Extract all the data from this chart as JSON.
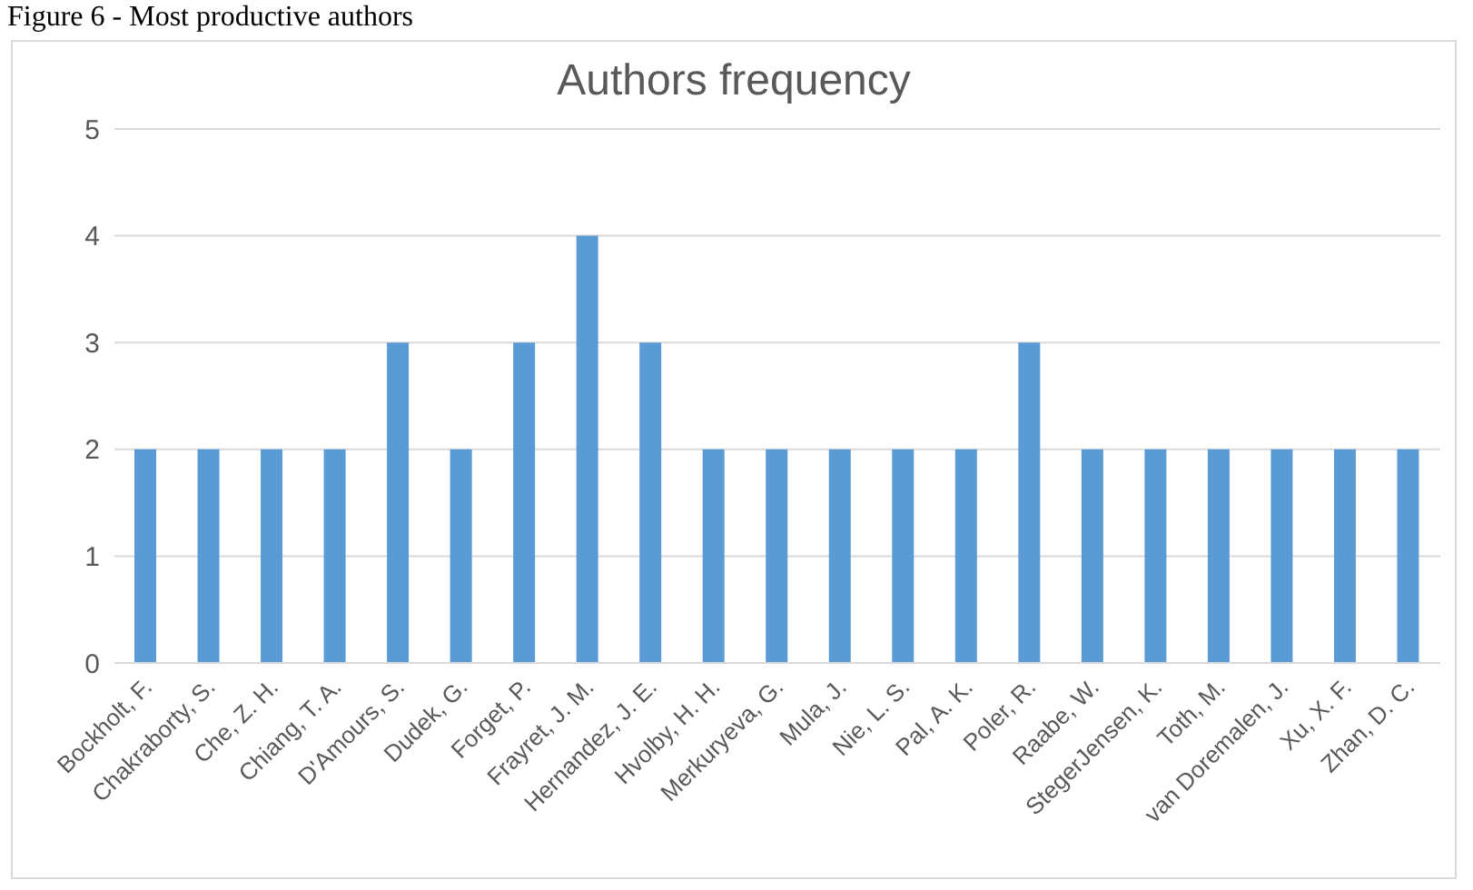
{
  "chart_data": {
    "type": "bar",
    "title": "Authors frequency",
    "annotations": [
      "Figure 6 - Most productive authors"
    ],
    "categories": [
      "Bockholt, F.",
      "Chakraborty, S.",
      "Che, Z. H.",
      "Chiang, T. A.",
      "D'Amours, S.",
      "Dudek, G.",
      "Forget, P.",
      "Frayret, J. M.",
      "Hernandez, J. E.",
      "Hvolby, H. H.",
      "Merkuryeva, G.",
      "Mula, J.",
      "Nie, L. S.",
      "Pal, A. K.",
      "Poler, R.",
      "Raabe, W.",
      "StegerJensen, K.",
      "Toth, M.",
      "van Doremalen, J.",
      "Xu, X. F.",
      "Zhan, D. C."
    ],
    "values": [
      2,
      2,
      2,
      2,
      3,
      2,
      3,
      4,
      3,
      2,
      2,
      2,
      2,
      2,
      3,
      2,
      2,
      2,
      2,
      2,
      2
    ],
    "color": "#5b9bd5",
    "ylim": [
      0,
      5
    ],
    "yticks": [
      0,
      1,
      2,
      3,
      4,
      5
    ],
    "grid": "y"
  }
}
